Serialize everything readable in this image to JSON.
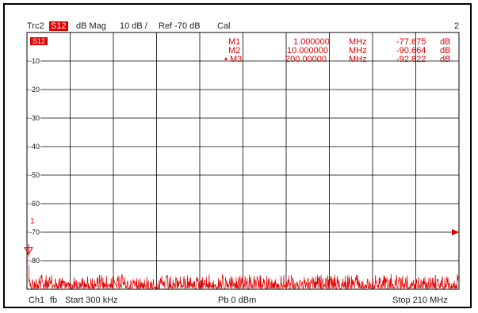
{
  "header": {
    "trace": "Trc2",
    "param": "S12",
    "format": "dB Mag",
    "scale": "10 dB /",
    "ref": "Ref -70 dB",
    "cal": "Cal",
    "channel_no": "2"
  },
  "trace_badge": "S12",
  "markers": [
    {
      "name": "M1",
      "value": "1.000000",
      "unit": "MHz",
      "level": "-77.675",
      "level_unit": "dB",
      "active": false
    },
    {
      "name": "M2",
      "value": "10.000000",
      "unit": "MHz",
      "level": "-90.664",
      "level_unit": "dB",
      "active": false
    },
    {
      "name": "M3",
      "value": "200.00000",
      "unit": "MHz",
      "level": "-92.822",
      "level_unit": "dB",
      "active": true
    }
  ],
  "active_marker_symbol": "•",
  "marker_tag": "1",
  "y_axis": {
    "labels": [
      "-10",
      "-20",
      "-30",
      "-40",
      "-50",
      "-60",
      "-70",
      "-80"
    ],
    "top_db": 0,
    "bottom_db": -90,
    "ref_db": -70
  },
  "footer": {
    "channel": "Ch1",
    "fb": "fb",
    "start": "Start 300 kHz",
    "power": "Pb  0 dBm",
    "stop": "Stop 210 MHz"
  },
  "colors": {
    "trace": "#e00000",
    "grid": "#000000",
    "ref_marker": "#e00000"
  },
  "chart_data": {
    "type": "line",
    "x_start_mhz": 0.3,
    "x_stop_mhz": 210,
    "ylim": [
      -90,
      0
    ],
    "series": [
      {
        "noise_floor_db": -87,
        "markers_db": [
          {
            "x_mhz": 1,
            "y": -77.675
          },
          {
            "x_mhz": 10,
            "y": -90.664
          },
          {
            "x_mhz": 200,
            "y": -92.822
          }
        ]
      }
    ]
  }
}
